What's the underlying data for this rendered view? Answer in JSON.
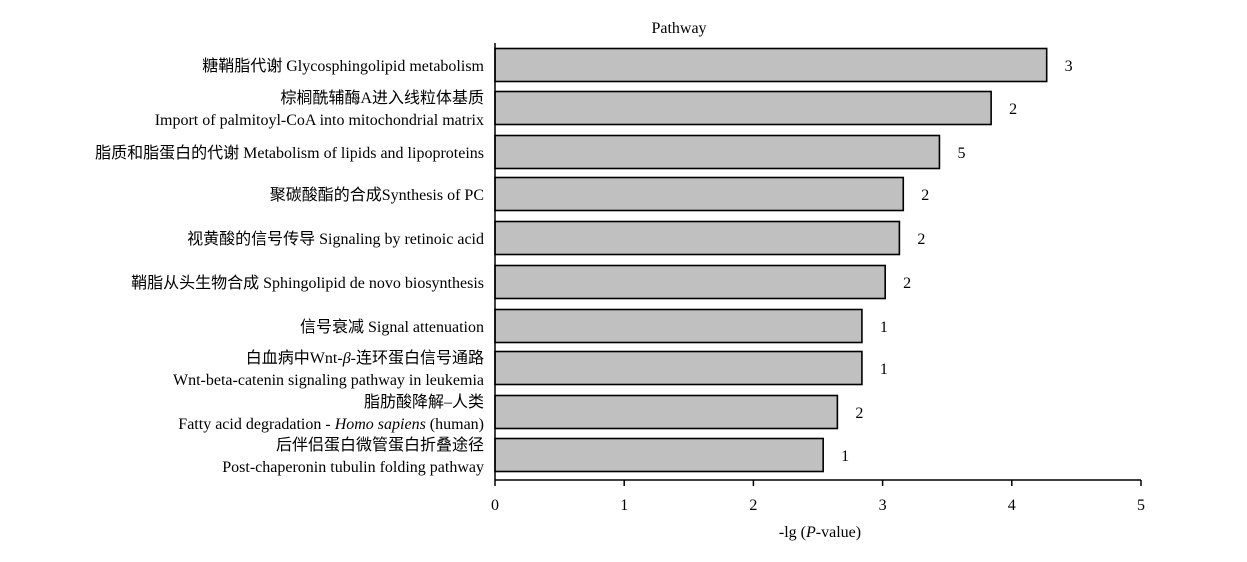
{
  "chart_data": {
    "type": "bar",
    "orientation": "horizontal",
    "title": "Pathway",
    "xlabel": {
      "prefix": "-lg (",
      "italic": "P",
      "suffix": "-value)"
    },
    "xlim": [
      0,
      5
    ],
    "xticks": [
      0,
      1,
      2,
      3,
      4,
      5
    ],
    "bar_color": "#c0c0c0",
    "bars": [
      {
        "label_lines": [
          [
            {
              "t": "糖鞘脂代谢 Glycosphingolipid metabolism"
            }
          ]
        ],
        "value": 4.27,
        "count": 3
      },
      {
        "label_lines": [
          [
            {
              "t": "棕榈酰辅酶A进入线粒体基质"
            }
          ],
          [
            {
              "t": "Import of palmitoyl-CoA into mitochondrial matrix"
            }
          ]
        ],
        "value": 3.84,
        "count": 2
      },
      {
        "label_lines": [
          [
            {
              "t": "脂质和脂蛋白的代谢 Metabolism of lipids and lipoproteins"
            }
          ]
        ],
        "value": 3.44,
        "count": 5
      },
      {
        "label_lines": [
          [
            {
              "t": "聚碳酸酯的合成Synthesis of PC"
            }
          ]
        ],
        "value": 3.16,
        "count": 2
      },
      {
        "label_lines": [
          [
            {
              "t": "视黄酸的信号传导 Signaling by retinoic acid"
            }
          ]
        ],
        "value": 3.13,
        "count": 2
      },
      {
        "label_lines": [
          [
            {
              "t": "鞘脂从头生物合成 Sphingolipid de novo biosynthesis"
            }
          ]
        ],
        "value": 3.02,
        "count": 2
      },
      {
        "label_lines": [
          [
            {
              "t": "信号衰减 Signal attenuation"
            }
          ]
        ],
        "value": 2.84,
        "count": 1
      },
      {
        "label_lines": [
          [
            {
              "t": "白血病中Wnt-"
            },
            {
              "t": "β",
              "i": true
            },
            {
              "t": "-连环蛋白信号通路"
            }
          ],
          [
            {
              "t": "Wnt-beta-catenin signaling pathway in leukemia"
            }
          ]
        ],
        "value": 2.84,
        "count": 1
      },
      {
        "label_lines": [
          [
            {
              "t": "脂肪酸降解–人类"
            }
          ],
          [
            {
              "t": "Fatty acid degradation - "
            },
            {
              "t": "Homo sapiens",
              "i": true
            },
            {
              "t": " (human)"
            }
          ]
        ],
        "value": 2.65,
        "count": 2
      },
      {
        "label_lines": [
          [
            {
              "t": "后伴侣蛋白微管蛋白折叠途径"
            }
          ],
          [
            {
              "t": "Post-chaperonin tubulin folding pathway"
            }
          ]
        ],
        "value": 2.54,
        "count": 1
      }
    ]
  }
}
